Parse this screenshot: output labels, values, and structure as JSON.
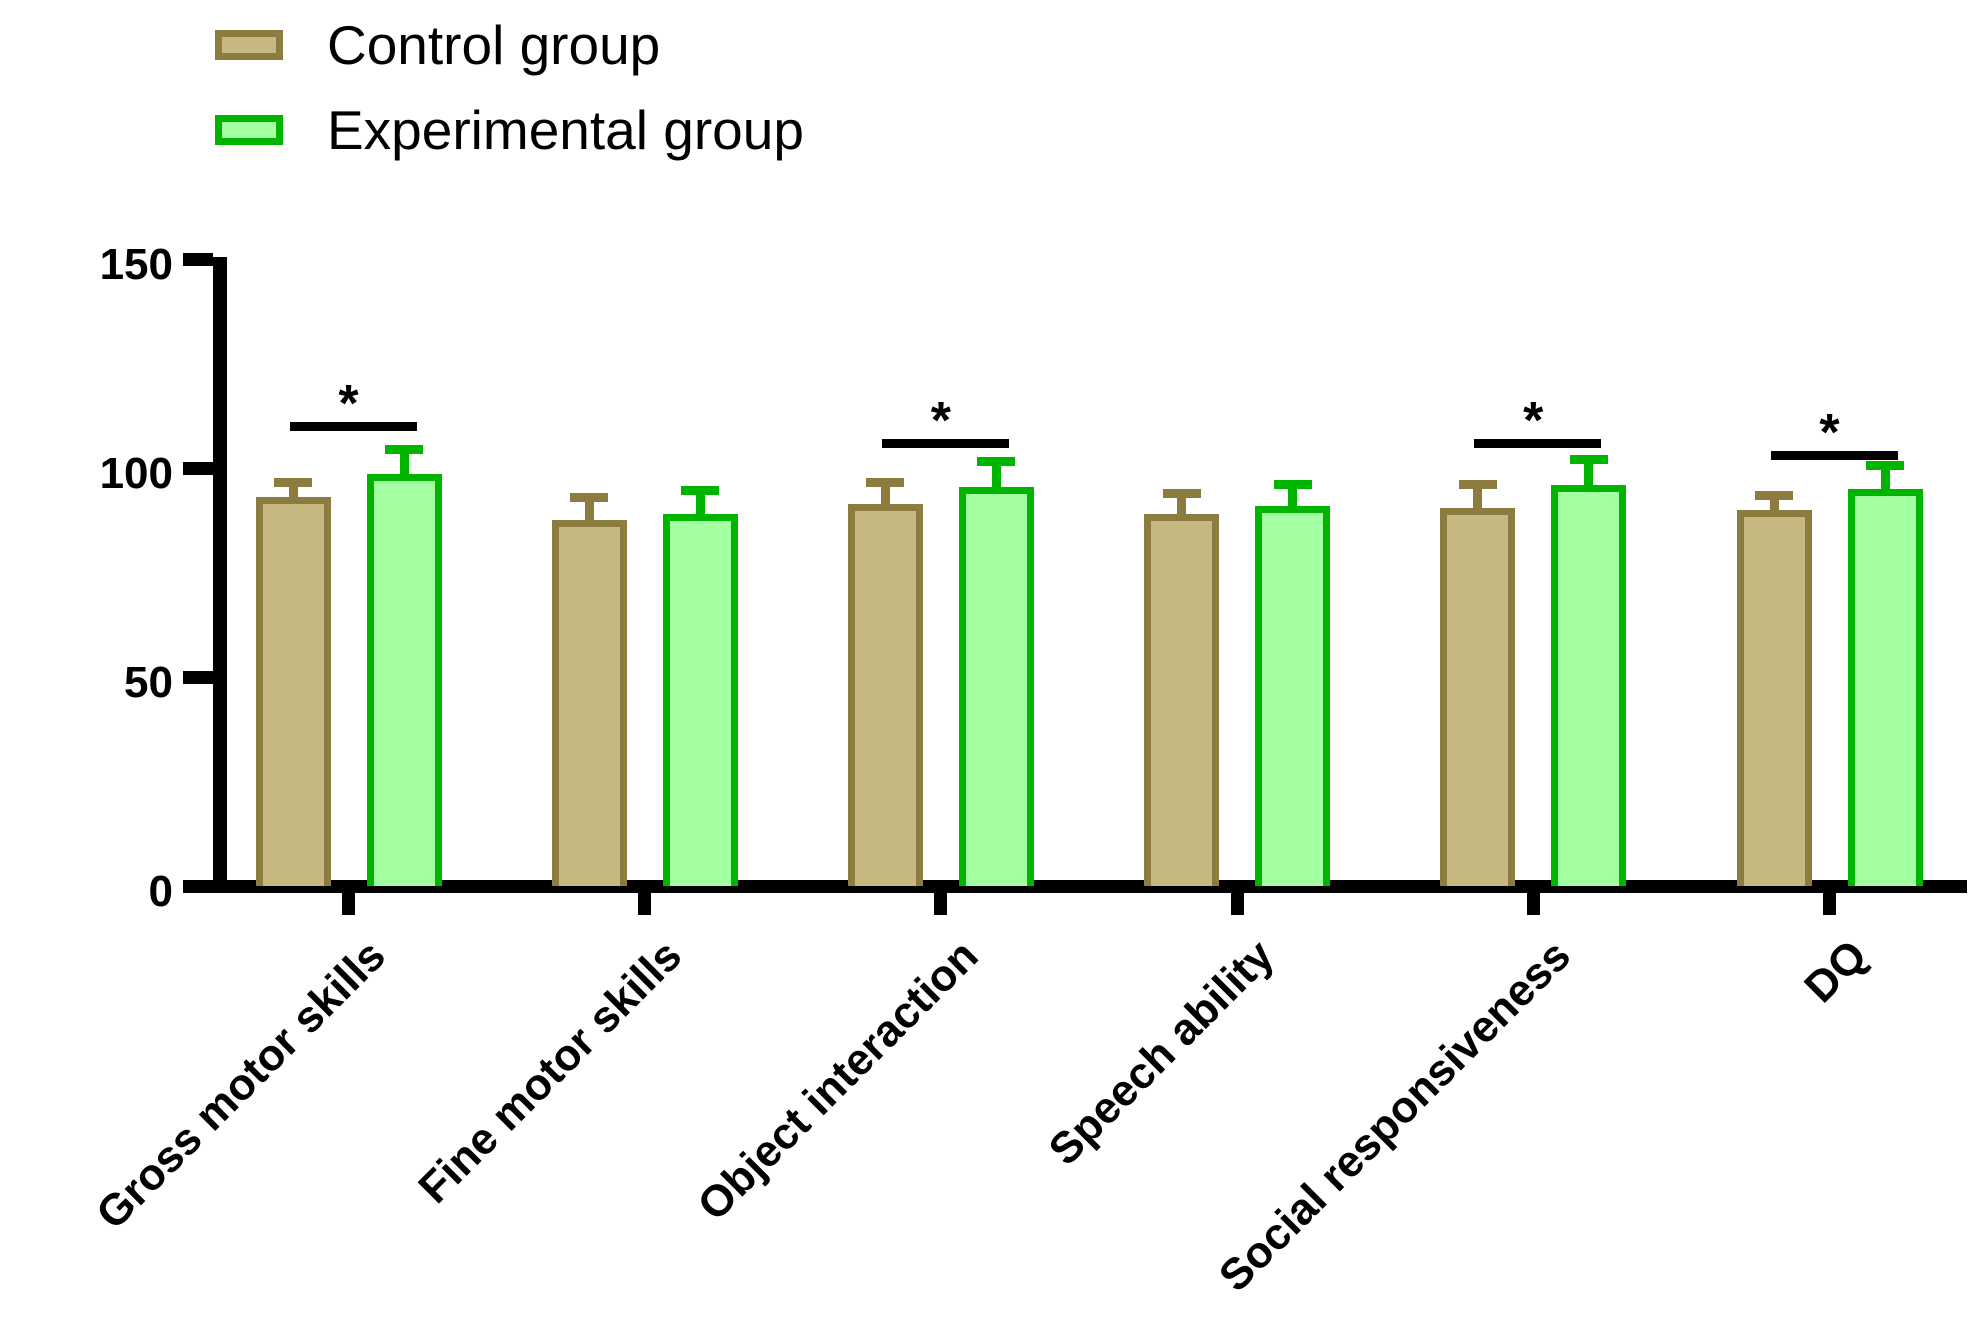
{
  "legend": {
    "items": [
      {
        "label": "Control group",
        "fill": "#C5B880",
        "border": "#8C7C40"
      },
      {
        "label": "Experimental group",
        "fill": "#A2FFA2",
        "border": "#00B400"
      }
    ]
  },
  "chart_data": {
    "type": "bar",
    "categories": [
      "Gross motor skills",
      "Fine motor skills",
      "Object interaction",
      "Speech ability",
      "Social responsiveness",
      "DQ"
    ],
    "series": [
      {
        "name": "Control group",
        "values": [
          93,
          87.5,
          91.5,
          89,
          90.5,
          90
        ],
        "errors": [
          3.5,
          5.5,
          5,
          5,
          5.5,
          3.5
        ],
        "fill": "#C5B880",
        "border": "#8C7C40"
      },
      {
        "name": "Experimental group",
        "values": [
          98.5,
          89,
          95.5,
          91,
          96,
          95
        ],
        "errors": [
          6,
          5.5,
          6,
          5,
          6,
          5.5
        ],
        "fill": "#A2FFA2",
        "border": "#00B400"
      }
    ],
    "y_ticks": [
      0,
      50,
      100,
      150
    ],
    "ylim": [
      0,
      150
    ],
    "xlabel": "",
    "ylabel": "",
    "title": "",
    "grid": false,
    "legend_position": "top-left",
    "error_bar_style": "upper-only",
    "significance_markers": [
      {
        "group_index": 0,
        "label": "*",
        "bracket_y_value": 111
      },
      {
        "group_index": 2,
        "label": "*",
        "bracket_y_value": 107
      },
      {
        "group_index": 4,
        "label": "*",
        "bracket_y_value": 107
      },
      {
        "group_index": 5,
        "label": "*",
        "bracket_y_value": 104
      }
    ]
  }
}
